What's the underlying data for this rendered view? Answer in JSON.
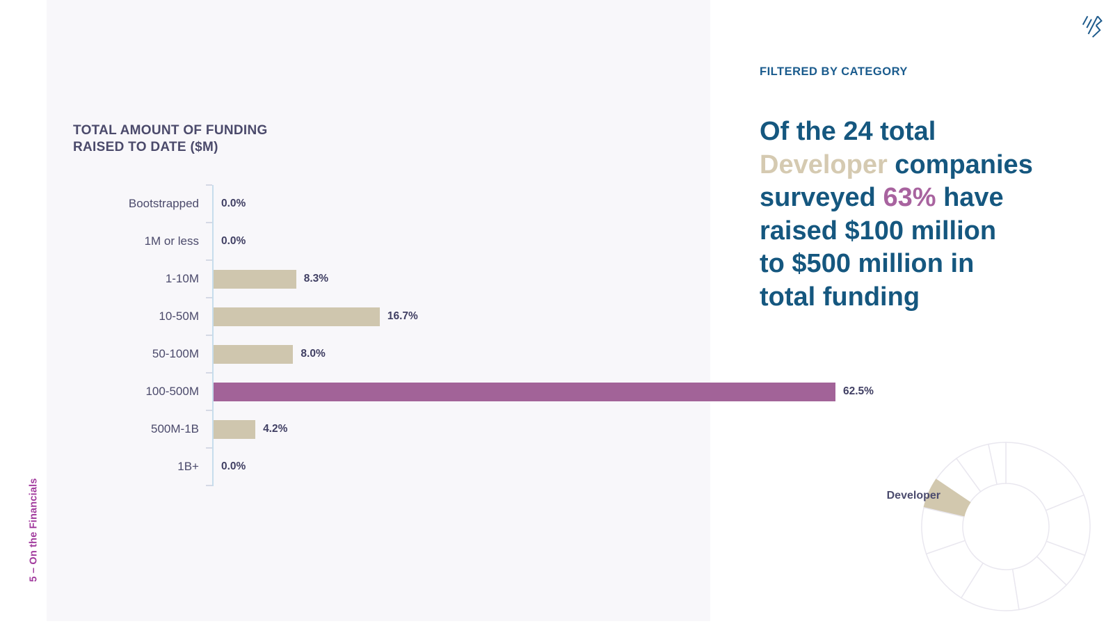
{
  "page": {
    "section_label": "5 – On the Financials"
  },
  "left_panel": {
    "title_line1": "TOTAL AMOUNT OF FUNDING",
    "title_line2": "RAISED TO DATE ($M)"
  },
  "right_panel": {
    "eyebrow": "FILTERED BY CATEGORY",
    "headline_segments": [
      {
        "text": "Of the 24 total\n",
        "style": "blue"
      },
      {
        "text": "Developer",
        "style": "beige"
      },
      {
        "text": " companies\nsurveyed ",
        "style": "blue"
      },
      {
        "text": "63%",
        "style": "purple"
      },
      {
        "text": " have\nraised $100 million\nto $500 million in\ntotal funding",
        "style": "blue"
      }
    ],
    "donut_label": "Developer"
  },
  "colors": {
    "panel_bg": "#f8f7fa",
    "bar_tan": "#cfc6ae",
    "bar_highlight": "#a26398",
    "text_dark": "#4b4a6b",
    "value_text": "#403f63",
    "heading_blue": "#15577f",
    "eyebrow_blue": "#1a5b8d",
    "beige_text": "#d5cab1",
    "purple_text": "#a8639f",
    "vertical_label_purple": "#a23c9e",
    "donut_stroke": "#e9e7ef",
    "donut_highlight": "#d2c8ae"
  },
  "chart_data": [
    {
      "type": "bar",
      "orientation": "horizontal",
      "title": "TOTAL AMOUNT OF FUNDING RAISED TO DATE ($M)",
      "categories": [
        "Bootstrapped",
        "1M or less",
        "1-10M",
        "10-50M",
        "50-100M",
        "100-500M",
        "500M-1B",
        "1B+"
      ],
      "values": [
        0.0,
        0.0,
        8.3,
        16.7,
        8.0,
        62.5,
        4.2,
        0.0
      ],
      "value_labels": [
        "0.0%",
        "0.0%",
        "8.3%",
        "16.7%",
        "8.0%",
        "62.5%",
        "4.2%",
        "0.0%"
      ],
      "highlight_index": 5,
      "xlim": [
        0,
        62.5
      ],
      "grid": false,
      "legend": false
    },
    {
      "type": "pie",
      "subtype": "donut",
      "title": "Category filter donut",
      "highlight_label": "Developer",
      "slices": [
        {
          "start": 22,
          "end": 90,
          "highlighted": false
        },
        {
          "start": 90,
          "end": 102,
          "highlighted": false
        },
        {
          "start": 102,
          "end": 126,
          "highlighted": false
        },
        {
          "start": 126,
          "end": 146,
          "highlighted": false
        },
        {
          "start": 146,
          "end": 167,
          "highlighted": true,
          "label": "Developer"
        },
        {
          "start": 167,
          "end": 199,
          "highlighted": false
        },
        {
          "start": 199,
          "end": 238,
          "highlighted": false
        },
        {
          "start": 238,
          "end": 279,
          "highlighted": false
        },
        {
          "start": 279,
          "end": 316,
          "highlighted": false
        },
        {
          "start": 316,
          "end": 340,
          "highlighted": false
        },
        {
          "start": 340,
          "end": 382,
          "highlighted": false
        }
      ]
    }
  ]
}
